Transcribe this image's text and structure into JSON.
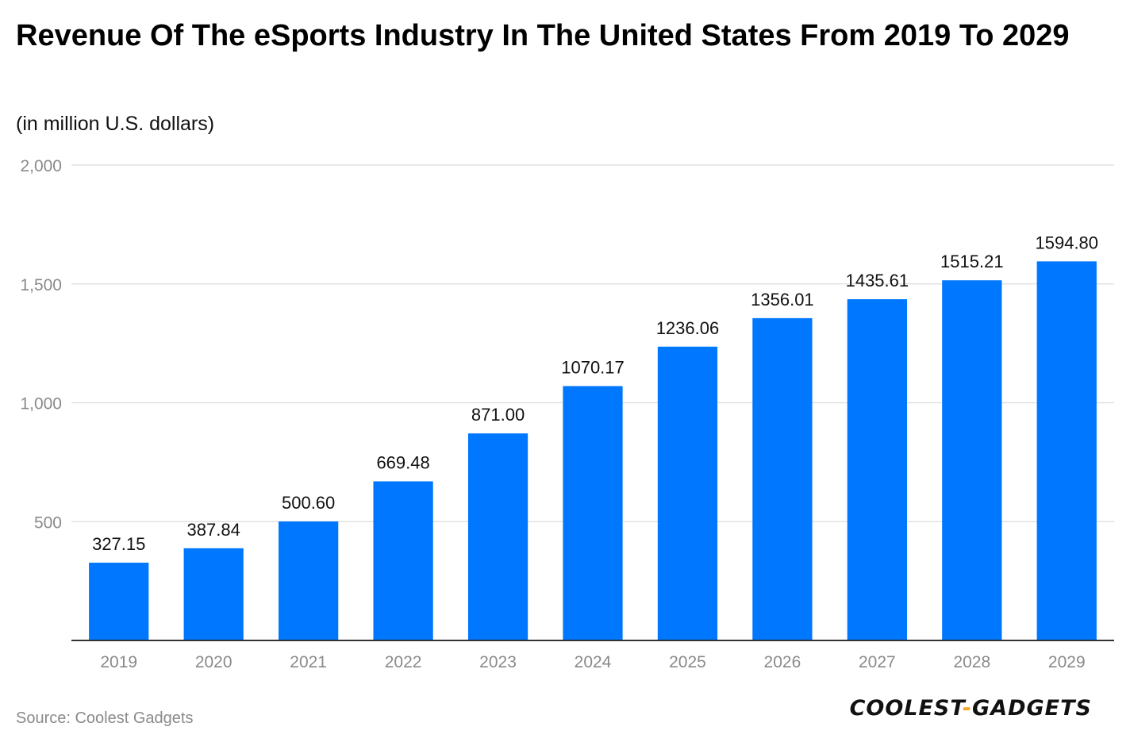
{
  "title": "Revenue Of The eSports Industry In The United States From 2019 To 2029",
  "subtitle": "(in million U.S. dollars)",
  "source": "Source: Coolest Gadgets",
  "brand": {
    "part1": "COOLEST",
    "dash": "-",
    "part2": "GADGETS"
  },
  "colors": {
    "bar": "#0077ff",
    "grid": "#dcdcdc",
    "axis": "#333333",
    "tick_text": "#8a8a8a",
    "label_text": "#111111",
    "brand_accent": "#f5a623"
  },
  "chart_data": {
    "type": "bar",
    "title": "Revenue Of The eSports Industry In The United States From 2019 To 2029",
    "subtitle": "(in million U.S. dollars)",
    "xlabel": "",
    "ylabel": "",
    "categories": [
      "2019",
      "2020",
      "2021",
      "2022",
      "2023",
      "2024",
      "2025",
      "2026",
      "2027",
      "2028",
      "2029"
    ],
    "values": [
      327.15,
      387.84,
      500.6,
      669.48,
      871.0,
      1070.17,
      1236.06,
      1356.01,
      1435.61,
      1515.21,
      1594.8
    ],
    "value_labels": [
      "327.15",
      "387.84",
      "500.60",
      "669.48",
      "871.00",
      "1070.17",
      "1236.06",
      "1356.01",
      "1435.61",
      "1515.21",
      "1594.80"
    ],
    "ylim": [
      0,
      2000
    ],
    "yticks": [
      500,
      1000,
      1500,
      2000
    ],
    "ytick_labels": [
      "500",
      "1,000",
      "1,500",
      "2,000"
    ],
    "grid": true,
    "legend": "none"
  }
}
